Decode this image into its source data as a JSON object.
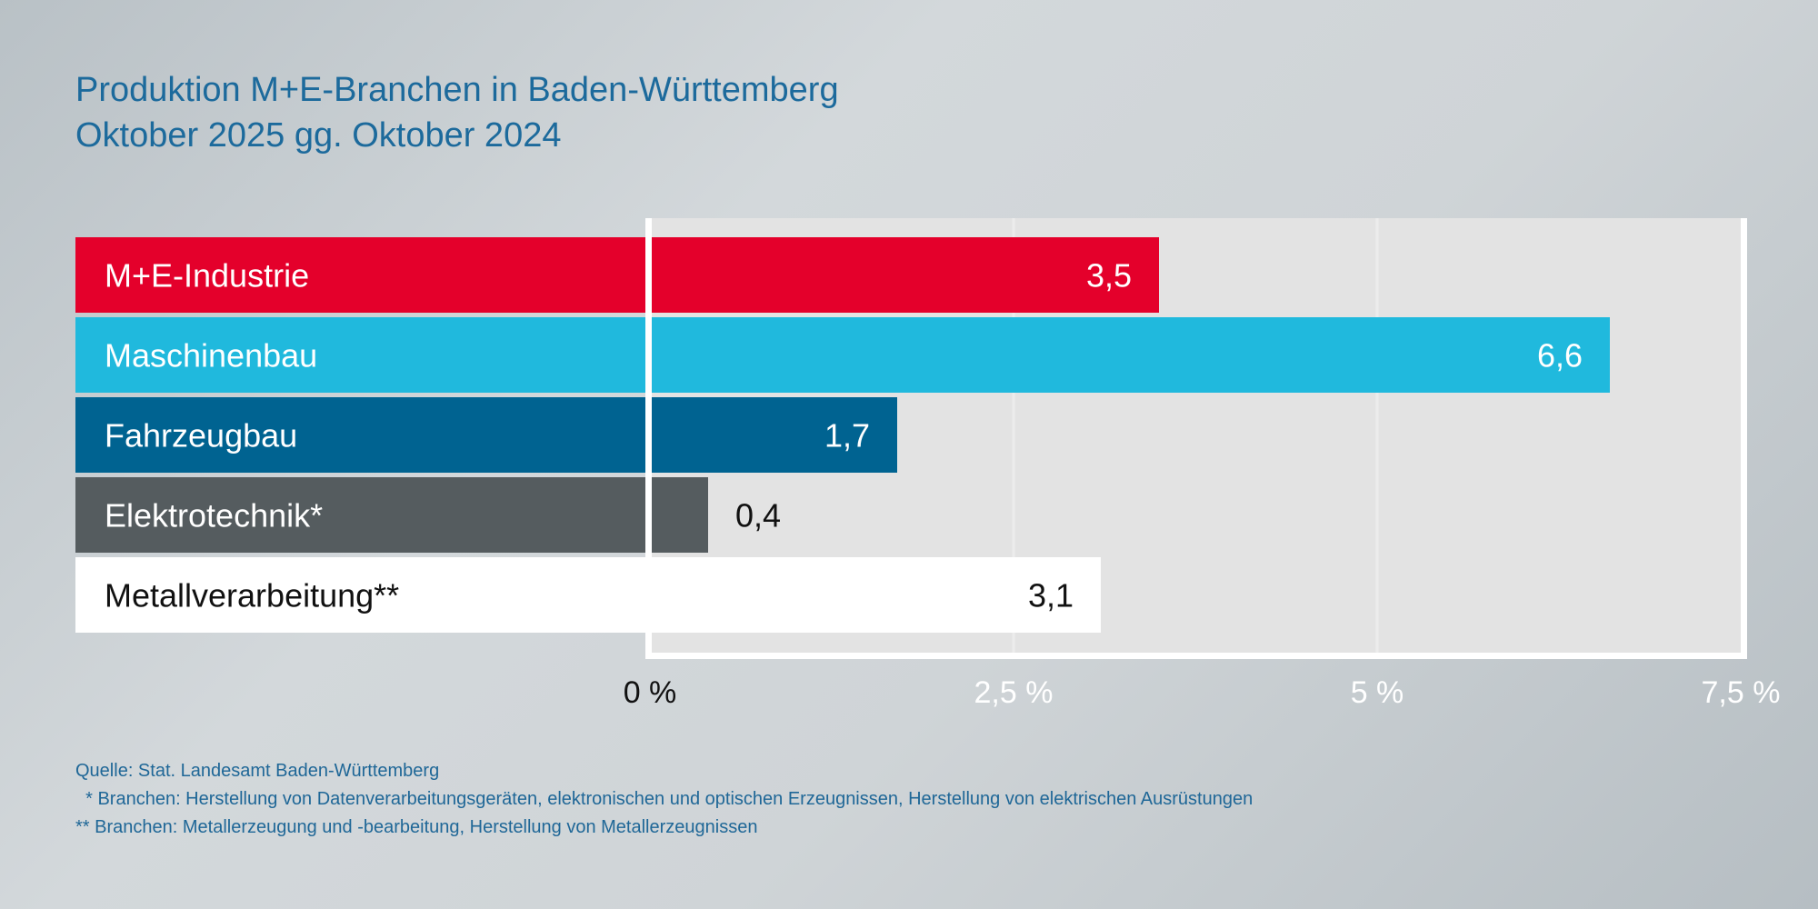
{
  "title": {
    "line1": "Produktion M+E-Branchen in Baden-Württemberg",
    "line2": "Oktober 2025 gg. Oktober 2024"
  },
  "chart_data": {
    "type": "bar",
    "orientation": "horizontal",
    "categories": [
      "M+E-Industrie",
      "Maschinenbau",
      "Fahrzeugbau",
      "Elektrotechnik*",
      "Metallverarbeitung**"
    ],
    "values": [
      3.5,
      6.6,
      1.7,
      0.4,
      3.1
    ],
    "value_labels": [
      "3,5",
      "6,6",
      "1,7",
      "0,4",
      "3,1"
    ],
    "colors": [
      "#e4002b",
      "#20b9dd",
      "#006391",
      "#555c5f",
      "#ffffff"
    ],
    "label_colors": [
      "#ffffff",
      "#ffffff",
      "#ffffff",
      "#ffffff",
      "#111111"
    ],
    "xlim": [
      0,
      7.5
    ],
    "xticks": [
      0,
      2.5,
      5,
      7.5
    ],
    "xtick_labels": [
      "0 %",
      "2,5 %",
      "5 %",
      "7,5 %"
    ],
    "grid": true,
    "plot_background": "#e3e3e3"
  },
  "footnotes": {
    "source": "Quelle: Stat. Landesamt Baden-Württemberg",
    "note1": "  * Branchen: Herstellung von Datenverarbeitungsgeräten, elektronischen und optischen Erzeugnissen, Herstellung von elektrischen Ausrüstungen",
    "note2": "** Branchen: Metallerzeugung und -bearbeitung, Herstellung von Metallerzeugnissen"
  }
}
